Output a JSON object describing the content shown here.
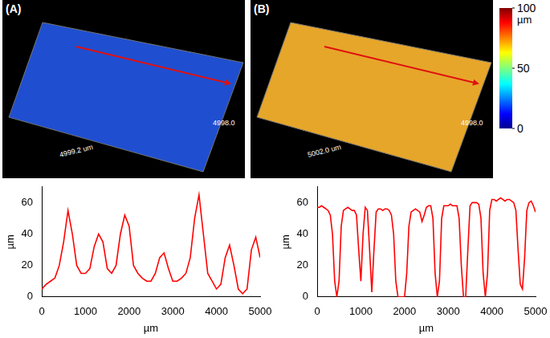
{
  "figure": {
    "panels": [
      {
        "label": "(A)",
        "dimension_labels": [
          "4999.2 um",
          "4998.0"
        ]
      },
      {
        "label": "(B)",
        "dimension_labels": [
          "5002.0 um",
          "4998.0"
        ]
      }
    ],
    "colorbar": {
      "range": [
        0,
        100
      ],
      "ticks": [
        0,
        50,
        100
      ],
      "label": "µm"
    }
  },
  "chart_data": [
    {
      "type": "line",
      "x_label": "µm",
      "y_label": "µm",
      "color": "#ff0000",
      "grid": false,
      "xlim": [
        0,
        5000
      ],
      "xticks": [
        0,
        1000,
        2000,
        3000,
        4000,
        5000
      ],
      "ylim": [
        0,
        70
      ],
      "yticks": [
        0,
        20,
        40,
        60
      ],
      "x": [
        0,
        100,
        200,
        300,
        400,
        500,
        600,
        700,
        800,
        900,
        1000,
        1100,
        1200,
        1300,
        1400,
        1500,
        1600,
        1700,
        1800,
        1900,
        2000,
        2100,
        2200,
        2300,
        2400,
        2500,
        2600,
        2700,
        2800,
        2900,
        3000,
        3100,
        3200,
        3300,
        3400,
        3500,
        3600,
        3700,
        3800,
        3900,
        4000,
        4100,
        4200,
        4300,
        4400,
        4500,
        4600,
        4700,
        4800,
        4900,
        5000
      ],
      "values": [
        5,
        8,
        10,
        12,
        20,
        35,
        55,
        40,
        20,
        15,
        15,
        18,
        32,
        40,
        35,
        18,
        15,
        20,
        40,
        52,
        45,
        20,
        15,
        12,
        10,
        10,
        15,
        25,
        28,
        18,
        10,
        10,
        12,
        15,
        25,
        50,
        65,
        40,
        15,
        10,
        5,
        8,
        25,
        33,
        20,
        5,
        2,
        5,
        30,
        38,
        25
      ]
    },
    {
      "type": "line",
      "x_label": "µm",
      "y_label": "µm",
      "color": "#ff0000",
      "grid": false,
      "xlim": [
        0,
        5000
      ],
      "xticks": [
        0,
        1000,
        2000,
        3000,
        4000,
        5000
      ],
      "ylim": [
        0,
        70
      ],
      "yticks": [
        0,
        20,
        40,
        60
      ],
      "x": [
        0,
        50,
        100,
        150,
        200,
        250,
        300,
        350,
        400,
        450,
        500,
        550,
        600,
        650,
        700,
        750,
        800,
        850,
        900,
        950,
        1000,
        1050,
        1100,
        1150,
        1200,
        1250,
        1300,
        1350,
        1400,
        1450,
        1500,
        1550,
        1600,
        1650,
        1700,
        1750,
        1800,
        1850,
        1900,
        1950,
        2000,
        2050,
        2100,
        2150,
        2200,
        2250,
        2300,
        2350,
        2400,
        2450,
        2500,
        2550,
        2600,
        2650,
        2700,
        2750,
        2800,
        2850,
        2900,
        2950,
        3000,
        3050,
        3100,
        3150,
        3200,
        3250,
        3300,
        3350,
        3400,
        3450,
        3500,
        3550,
        3600,
        3650,
        3700,
        3750,
        3800,
        3850,
        3900,
        3950,
        4000,
        4050,
        4100,
        4150,
        4200,
        4250,
        4300,
        4350,
        4400,
        4450,
        4500,
        4550,
        4600,
        4650,
        4700,
        4750,
        4800,
        4850,
        4900,
        4950,
        5000
      ],
      "values": [
        57,
        57,
        58,
        57,
        56,
        55,
        52,
        40,
        10,
        0,
        10,
        45,
        55,
        56,
        57,
        56,
        55,
        55,
        52,
        30,
        10,
        40,
        57,
        55,
        30,
        3,
        30,
        54,
        56,
        56,
        55,
        56,
        56,
        55,
        52,
        40,
        10,
        0,
        0,
        0,
        0,
        15,
        45,
        54,
        55,
        56,
        55,
        54,
        48,
        52,
        57,
        58,
        58,
        50,
        15,
        0,
        10,
        50,
        58,
        58,
        58,
        59,
        58,
        58,
        58,
        50,
        20,
        0,
        0,
        30,
        58,
        60,
        60,
        60,
        59,
        50,
        15,
        0,
        15,
        55,
        62,
        62,
        61,
        62,
        63,
        62,
        61,
        62,
        62,
        61,
        60,
        55,
        30,
        8,
        5,
        25,
        55,
        60,
        61,
        58,
        54
      ]
    }
  ]
}
